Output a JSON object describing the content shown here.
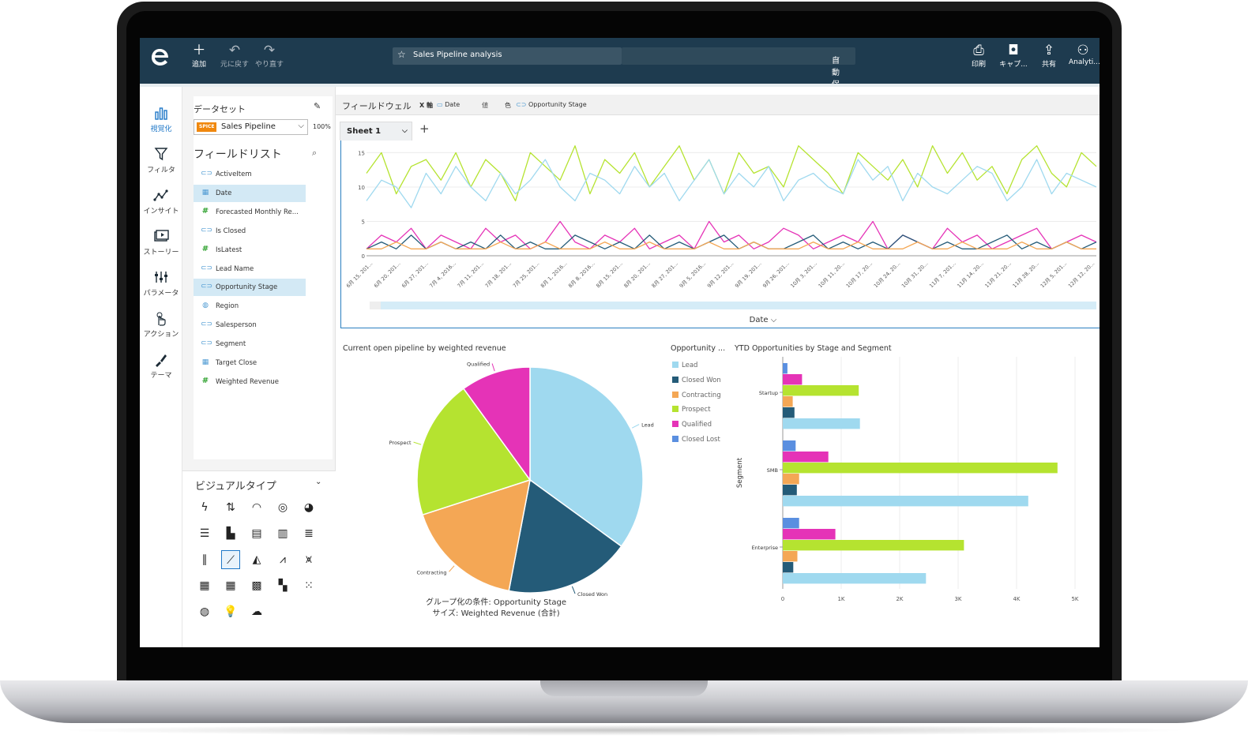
{
  "topbar": {
    "add_label": "追加",
    "undo_label": "元に戻す",
    "redo_label": "やり直す",
    "analysis_title": "Sales Pipeline analysis",
    "autosave_label": "自動保存がオン",
    "print_label": "印刷",
    "capture_label": "キャプ...",
    "share_label": "共有",
    "user_label": "Analyti..."
  },
  "leftnav": {
    "items": [
      {
        "label": "視覚化",
        "icon": "bar-chart-icon"
      },
      {
        "label": "フィルタ",
        "icon": "filter-icon"
      },
      {
        "label": "インサイト",
        "icon": "insight-icon"
      },
      {
        "label": "ストーリー",
        "icon": "story-icon"
      },
      {
        "label": "パラメータ",
        "icon": "parameter-icon"
      },
      {
        "label": "アクション",
        "icon": "action-icon"
      },
      {
        "label": "テーマ",
        "icon": "theme-icon"
      }
    ]
  },
  "dataset": {
    "label": "データセット",
    "badge": "SPICE",
    "name": "Sales Pipeline",
    "percent": "100%"
  },
  "fieldlist": {
    "title": "フィールドリスト",
    "fields": [
      {
        "name": "ActiveItem",
        "kind": "dimension",
        "selected": false
      },
      {
        "name": "Date",
        "kind": "date",
        "selected": true
      },
      {
        "name": "Forecasted Monthly Re...",
        "kind": "measure",
        "selected": false
      },
      {
        "name": "Is Closed",
        "kind": "dimension",
        "selected": false
      },
      {
        "name": "IsLatest",
        "kind": "measure",
        "selected": false
      },
      {
        "name": "Lead Name",
        "kind": "dimension",
        "selected": false
      },
      {
        "name": "Opportunity Stage",
        "kind": "dimension",
        "selected": true
      },
      {
        "name": "Region",
        "kind": "geo",
        "selected": false
      },
      {
        "name": "Salesperson",
        "kind": "dimension",
        "selected": false
      },
      {
        "name": "Segment",
        "kind": "dimension",
        "selected": false
      },
      {
        "name": "Target Close",
        "kind": "date",
        "selected": false
      },
      {
        "name": "Weighted Revenue",
        "kind": "measure",
        "selected": false
      }
    ]
  },
  "visualtypes": {
    "title": "ビジュアルタイプ",
    "icons": [
      "autograph-icon",
      "kpi-icon",
      "gauge-icon",
      "donut-icon",
      "pie-icon",
      "horizontal-bar-icon",
      "vertical-bar-icon",
      "stacked-bar-icon",
      "stacked-column-icon",
      "stacked-100-bar-icon",
      "stacked-100-column-icon",
      "line-chart-icon",
      "area-chart-icon",
      "combo-chart-icon",
      "combo-line-icon",
      "pivot-table-icon",
      "table-icon",
      "heat-map-icon",
      "tree-map-icon",
      "scatter-plot-icon",
      "geo-map-icon",
      "insight-icon",
      "word-cloud-icon"
    ],
    "selected": "line-chart-icon"
  },
  "fieldwell": {
    "title": "フィールドウェル",
    "x_axis_label": "X 軸",
    "x_axis_value": "Date",
    "value_label": "値",
    "color_label": "色",
    "color_value": "Opportunity Stage"
  },
  "sheet": {
    "tab_label": "Sheet 1",
    "add_label": "+"
  },
  "colors": {
    "Lead": "#9fd9ef",
    "Closed Won": "#245b78",
    "Contracting": "#f4a755",
    "Prospect": "#b5e330",
    "Qualified": "#e533b7",
    "Closed Lost": "#5a8fe0",
    "accent": "#1f78c8"
  },
  "line_chart": {
    "xlabel": "Date",
    "y_ticks": [
      "0",
      "5",
      "10",
      "15"
    ],
    "x_ticks": [
      "6月 15, 201...",
      "6月 20, 201...",
      "6月 27, 201...",
      "7月 4, 2016...",
      "7月 11, 201...",
      "7月 18, 201...",
      "7月 25, 201...",
      "8月 1, 2016...",
      "8月 8, 2016...",
      "8月 15, 201...",
      "8月 20, 201...",
      "8月 27, 201...",
      "9月 5, 2016...",
      "9月 12, 201...",
      "9月 19, 201...",
      "9月 26, 201...",
      "10月 3, 201...",
      "10月 11, 20...",
      "10月 17, 20...",
      "10月 24, 20...",
      "10月 31, 20...",
      "11月 7, 201...",
      "11月 14, 20...",
      "11月 21, 20...",
      "11月 28, 20...",
      "12月 5, 201...",
      "12月 12, 20..."
    ]
  },
  "pie_visual": {
    "title": "Current open pipeline by weighted revenue",
    "caption_line1": "グループ化の条件: Opportunity Stage",
    "caption_line2": "サイズ: Weighted Revenue (合計)",
    "legend_title": "Opportunity ...",
    "legend": [
      "Lead",
      "Closed Won",
      "Contracting",
      "Prospect",
      "Qualified",
      "Closed Lost"
    ]
  },
  "bar_visual": {
    "title": "YTD Opportunities by Stage and Segment",
    "ylabel": "Segment",
    "x_ticks": [
      "0",
      "1K",
      "2K",
      "3K",
      "4K",
      "5K"
    ]
  },
  "chart_data": [
    {
      "type": "line",
      "xlabel": "Date",
      "ylabel": "",
      "ylim": [
        0,
        17
      ],
      "x_range": [
        "2016-06-15",
        "2016-12-20"
      ],
      "series": [
        {
          "name": "Prospect",
          "color": "#b5e330",
          "values": [
            12,
            15,
            9,
            13,
            14,
            11,
            15,
            10,
            14,
            12,
            8,
            15,
            13,
            11,
            16,
            9,
            14,
            12,
            15,
            10,
            13,
            16,
            11,
            14,
            9,
            15,
            12,
            13,
            10,
            16,
            14,
            12,
            9,
            15,
            13,
            11,
            14,
            10,
            16,
            12,
            15,
            11,
            13,
            9,
            14,
            16,
            12,
            10,
            15,
            13
          ]
        },
        {
          "name": "Lead",
          "color": "#9fd9ef",
          "values": [
            8,
            11,
            10,
            7,
            12,
            9,
            13,
            10,
            8,
            12,
            9,
            11,
            14,
            10,
            8,
            12,
            11,
            9,
            13,
            10,
            12,
            8,
            11,
            14,
            9,
            12,
            10,
            13,
            8,
            11,
            12,
            10,
            9,
            14,
            11,
            13,
            8,
            12,
            10,
            9,
            11,
            13,
            12,
            8,
            10,
            14,
            9,
            12,
            11,
            10
          ]
        },
        {
          "name": "Qualified",
          "color": "#e533b7",
          "values": [
            1,
            3,
            2,
            4,
            1,
            3,
            2,
            1,
            4,
            2,
            3,
            1,
            2,
            5,
            2,
            1,
            3,
            2,
            4,
            1,
            2,
            3,
            1,
            5,
            2,
            3,
            1,
            2,
            4,
            3,
            1,
            2,
            3,
            2,
            5,
            1,
            3,
            2,
            1,
            4,
            2,
            3,
            1,
            2,
            3,
            4,
            1,
            2,
            3,
            2
          ]
        },
        {
          "name": "Closed Won",
          "color": "#245b78",
          "values": [
            1,
            2,
            1,
            3,
            1,
            2,
            1,
            2,
            1,
            3,
            1,
            2,
            1,
            1,
            3,
            2,
            1,
            2,
            1,
            3,
            1,
            2,
            1,
            2,
            3,
            1,
            2,
            1,
            1,
            2,
            3,
            1,
            2,
            1,
            2,
            1,
            3,
            2,
            1,
            2,
            1,
            1,
            2,
            3,
            1,
            2,
            1,
            2,
            1,
            2
          ]
        },
        {
          "name": "Contracting",
          "color": "#f4a755",
          "values": [
            1,
            1,
            2,
            1,
            1,
            2,
            1,
            1,
            1,
            2,
            1,
            1,
            2,
            1,
            1,
            1,
            2,
            1,
            1,
            2,
            1,
            1,
            1,
            2,
            1,
            1,
            2,
            1,
            1,
            1,
            2,
            1,
            1,
            2,
            1,
            1,
            1,
            2,
            1,
            1,
            2,
            1,
            1,
            1,
            2,
            1,
            1,
            2,
            1,
            1
          ]
        }
      ]
    },
    {
      "type": "pie",
      "title": "Current open pipeline by weighted revenue",
      "categories": [
        "Lead",
        "Closed Won",
        "Contracting",
        "Prospect",
        "Qualified"
      ],
      "values": [
        35,
        18,
        17,
        20,
        10
      ]
    },
    {
      "type": "bar",
      "title": "YTD Opportunities by Stage and Segment",
      "ylabel": "Segment",
      "orientation": "horizontal",
      "xlim": [
        0,
        5000
      ],
      "categories": [
        "Startup",
        "SMB",
        "Enterprise"
      ],
      "series": [
        {
          "name": "Closed Lost",
          "values": [
            80,
            220,
            280
          ]
        },
        {
          "name": "Qualified",
          "values": [
            330,
            780,
            900
          ]
        },
        {
          "name": "Prospect",
          "values": [
            1300,
            4700,
            3100
          ]
        },
        {
          "name": "Contracting",
          "values": [
            170,
            280,
            250
          ]
        },
        {
          "name": "Closed Won",
          "values": [
            200,
            240,
            180
          ]
        },
        {
          "name": "Lead",
          "values": [
            1320,
            4200,
            2450
          ]
        }
      ]
    }
  ]
}
